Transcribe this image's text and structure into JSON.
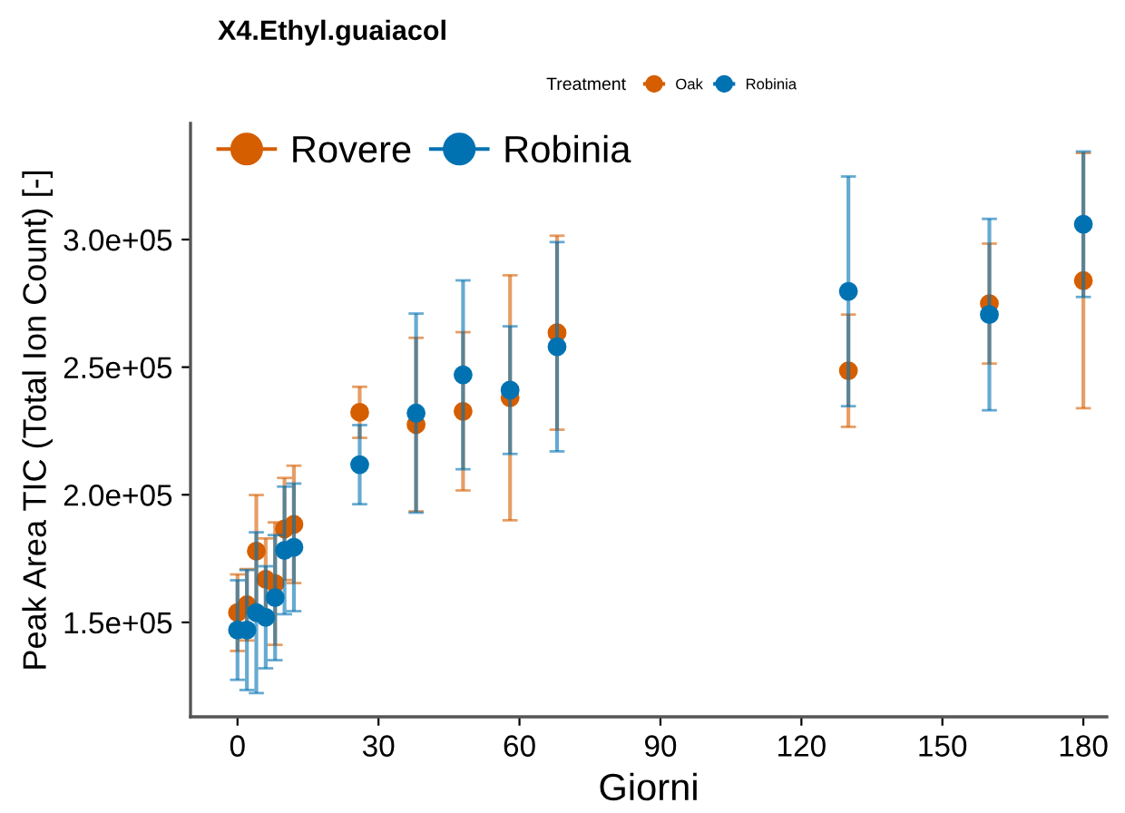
{
  "chart_data": {
    "type": "scatter",
    "title": "X4.Ethyl.guaiacol",
    "xlabel": "Giorni",
    "ylabel": "Peak Area TIC (Total Ion Count) [-]",
    "legend_title": "Treatment",
    "legend": "top",
    "marker": "circle",
    "x": [
      0,
      2,
      4,
      6,
      8,
      10,
      12,
      26,
      38,
      48,
      58,
      68,
      130,
      160,
      180
    ],
    "series": [
      {
        "name": "Oak",
        "color": "#d55e00",
        "values": [
          153800,
          156900,
          177900,
          166900,
          165200,
          186600,
          188400,
          232300,
          227500,
          232700,
          238000,
          263500,
          248600,
          274900,
          283900
        ],
        "errors": [
          15000,
          14000,
          22000,
          16000,
          24000,
          20000,
          23000,
          10000,
          34000,
          31000,
          48000,
          38000,
          22000,
          23500,
          50000
        ]
      },
      {
        "name": "Robinia",
        "color": "#0072b2",
        "values": [
          147000,
          147000,
          153800,
          152000,
          159700,
          178200,
          179400,
          211800,
          232000,
          247000,
          241000,
          258000,
          279700,
          270600,
          306000
        ],
        "errors": [
          19500,
          23500,
          31500,
          20000,
          24500,
          25000,
          25000,
          15500,
          39000,
          37000,
          25000,
          41000,
          45000,
          37500,
          28500
        ]
      }
    ],
    "annotations": [
      "Rovere",
      "Robinia"
    ],
    "xlim": [
      -10,
      185
    ],
    "xticks": [
      0,
      30,
      60,
      90,
      120,
      150,
      180
    ],
    "ylim": [
      113000,
      345500
    ],
    "yticks": [
      {
        "value": 150000,
        "label": "1.5e+05"
      },
      {
        "value": 200000,
        "label": "2.0e+05"
      },
      {
        "value": 250000,
        "label": "2.5e+05"
      },
      {
        "value": 300000,
        "label": "3.0e+05"
      }
    ],
    "grid": false
  }
}
